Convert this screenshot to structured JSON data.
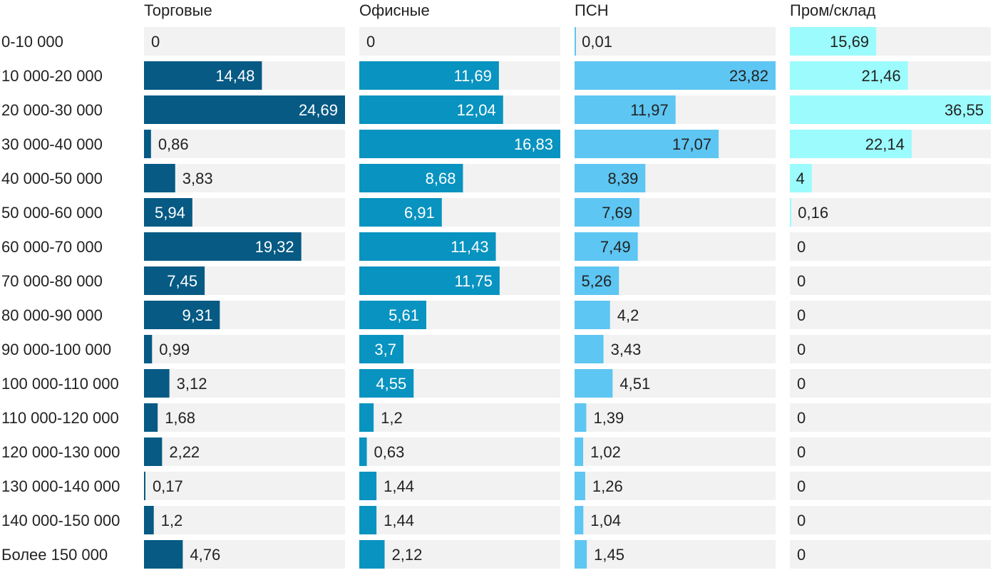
{
  "chart_data": {
    "type": "bar",
    "orientation": "horizontal",
    "layout": "small-multiples",
    "categories": [
      "0-10 000",
      "10 000-20 000",
      "20 000-30 000",
      "30 000-40 000",
      "40 000-50 000",
      "50 000-60 000",
      "60 000-70 000",
      "70 000-80 000",
      "80 000-90 000",
      "90 000-100 000",
      "100 000-110 000",
      "110 000-120 000",
      "120 000-130 000",
      "130 000-140 000",
      "140 000-150 000",
      "Более 150 000"
    ],
    "series": [
      {
        "name": "Торговые",
        "color": "#065a84",
        "labels": [
          "0",
          "14,48",
          "24,69",
          "0,86",
          "3,83",
          "5,94",
          "19,32",
          "7,45",
          "9,31",
          "0,99",
          "3,12",
          "1,68",
          "2,22",
          "0,17",
          "1,2",
          "4,76"
        ],
        "values": [
          0,
          14.48,
          24.69,
          0.86,
          3.83,
          5.94,
          19.32,
          7.45,
          9.31,
          0.99,
          3.12,
          1.68,
          2.22,
          0.17,
          1.2,
          4.76
        ]
      },
      {
        "name": "Офисные",
        "color": "#0893c0",
        "labels": [
          "0",
          "11,69",
          "12,04",
          "16,83",
          "8,68",
          "6,91",
          "11,43",
          "11,75",
          "5,61",
          "3,7",
          "4,55",
          "1,2",
          "0,63",
          "1,44",
          "1,44",
          "2,12"
        ],
        "values": [
          0,
          11.69,
          12.04,
          16.83,
          8.68,
          6.91,
          11.43,
          11.75,
          5.61,
          3.7,
          4.55,
          1.2,
          0.63,
          1.44,
          1.44,
          2.12
        ]
      },
      {
        "name": "ПСН",
        "color": "#5ec6f2",
        "labels": [
          "0,01",
          "23,82",
          "11,97",
          "17,07",
          "8,39",
          "7,69",
          "7,49",
          "5,26",
          "4,2",
          "3,43",
          "4,51",
          "1,39",
          "1,02",
          "1,26",
          "1,04",
          "1,45"
        ],
        "values": [
          0.01,
          23.82,
          11.97,
          17.07,
          8.39,
          7.69,
          7.49,
          5.26,
          4.2,
          3.43,
          4.51,
          1.39,
          1.02,
          1.26,
          1.04,
          1.45
        ]
      },
      {
        "name": "Пром/склад",
        "color": "#9cfbfc",
        "labels": [
          "15,69",
          "21,46",
          "36,55",
          "22,14",
          "4",
          "0,16",
          "0",
          "0",
          "0",
          "0",
          "0",
          "0",
          "0",
          "0",
          "0",
          "0"
        ],
        "values": [
          15.69,
          21.46,
          36.55,
          22.14,
          4,
          0.16,
          0,
          0,
          0,
          0,
          0,
          0,
          0,
          0,
          0,
          0
        ]
      }
    ],
    "track_color": "#f2f2f2",
    "label_inside_color_dark": "#ffffff",
    "label_color": "#222222",
    "grid": false,
    "legend": "none"
  }
}
